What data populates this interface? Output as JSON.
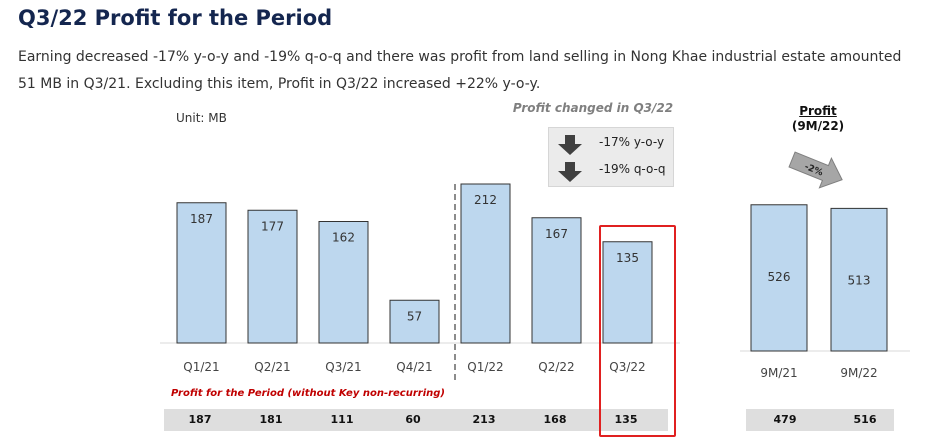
{
  "header": {
    "title": "Q3/22 Profit for the Period",
    "subtitle": "Earning decreased -17% y-o-y and -19% q-o-q and there was profit from land selling in Nong Khae industrial estate amounted 51 MB in Q3/21. Excluding this item, Profit in Q3/22 increased +22% y-o-y."
  },
  "unit_label": "Unit: MB",
  "annotation": {
    "title": "Profit changed in Q3/22",
    "items": [
      {
        "text": "-17% y-o-y",
        "icon": "arrow-down-icon"
      },
      {
        "text": "-19% q-o-q",
        "icon": "arrow-down-icon"
      }
    ]
  },
  "nine_month": {
    "title": "Profit",
    "subtitle": "(9M/22)",
    "change_label": "-2%"
  },
  "recurring": {
    "label": "Profit for the Period (without Key non-recurring)",
    "quarterly_values": [
      "187",
      "181",
      "111",
      "60",
      "213",
      "168",
      "135"
    ],
    "nine_month_values": [
      "479",
      "516"
    ]
  },
  "colors": {
    "bar_fill": "#bdd7ee",
    "bar_stroke": "#333333",
    "highlight": "#e02020",
    "title": "#14264f",
    "recurring_label": "#c00000",
    "arrow": "#404040"
  },
  "chart_data": [
    {
      "type": "bar",
      "categories": [
        "Q1/21",
        "Q2/21",
        "Q3/21",
        "Q4/21",
        "Q1/22",
        "Q2/22",
        "Q3/22"
      ],
      "values": [
        187,
        177,
        162,
        57,
        212,
        167,
        135
      ],
      "title": "",
      "xlabel": "",
      "ylabel": "",
      "highlighted_category": "Q3/22",
      "grid": false
    },
    {
      "type": "bar",
      "categories": [
        "9M/21",
        "9M/22"
      ],
      "values": [
        526,
        513
      ],
      "title": "Profit (9M/22)",
      "xlabel": "",
      "ylabel": "",
      "grid": false
    }
  ]
}
